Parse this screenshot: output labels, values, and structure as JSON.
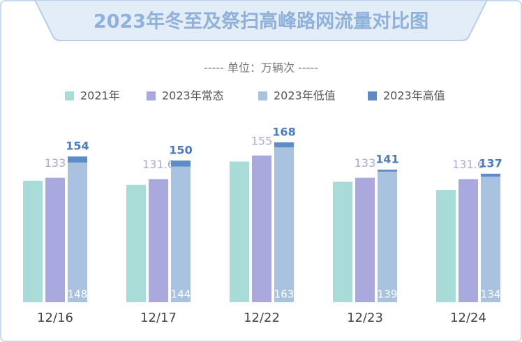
{
  "chart_data": {
    "type": "bar",
    "title": "2023年冬至及祭扫高峰路网流量对比图",
    "subtitle": "----- 单位：万辆次 -----",
    "categories": [
      "12/16",
      "12/17",
      "12/22",
      "12/23",
      "12/24"
    ],
    "series": [
      {
        "name": "2021年",
        "color": "#a9dcd8",
        "values": [
          130,
          126,
          149,
          129,
          121
        ]
      },
      {
        "name": "2023年常态",
        "color": "#a9a9dd",
        "values": [
          133,
          131.6,
          155,
          133,
          131.6
        ]
      },
      {
        "name": "2023年低值",
        "color": "#a8c2df",
        "values": [
          148,
          144,
          163,
          139,
          134
        ]
      },
      {
        "name": "2023年高值",
        "color": "#5d8dc7",
        "values": [
          154,
          150,
          168,
          141,
          137
        ]
      }
    ],
    "ylim": [
      10,
      190
    ],
    "legend": "top"
  }
}
